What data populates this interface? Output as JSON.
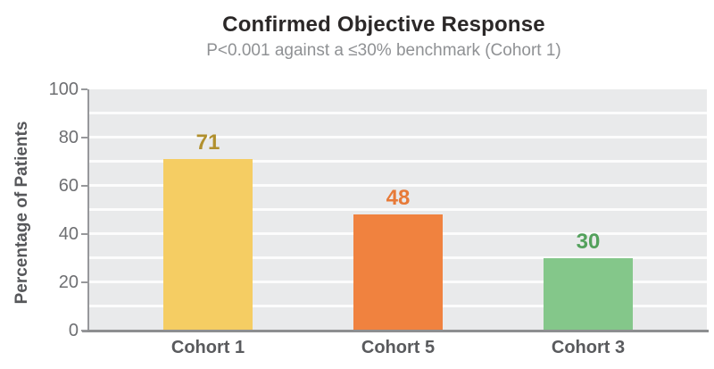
{
  "chart_data": {
    "type": "bar",
    "title": "Confirmed Objective Response",
    "subtitle": "P<0.001 against a ≤30% benchmark (Cohort 1)",
    "categories": [
      "Cohort 1",
      "Cohort 5",
      "Cohort 3"
    ],
    "values": [
      71,
      48,
      30
    ],
    "bar_colors": [
      "#f5cd63",
      "#f0823f",
      "#84c78a"
    ],
    "value_label_colors": [
      "#b1902e",
      "#e77a38",
      "#53a15c"
    ],
    "xlabel": "",
    "ylabel": "Percentage of Patients",
    "ylim": [
      0,
      100
    ],
    "yticks": [
      0,
      20,
      40,
      60,
      80,
      100
    ],
    "gridline_step": 10,
    "grid": true,
    "legend": "none",
    "plot_background": "#e9eaeb",
    "grid_color": "#f8f9fa",
    "axis_color": "#97989b",
    "title_color": "#2b2828",
    "subtitle_color": "#8f9194"
  }
}
